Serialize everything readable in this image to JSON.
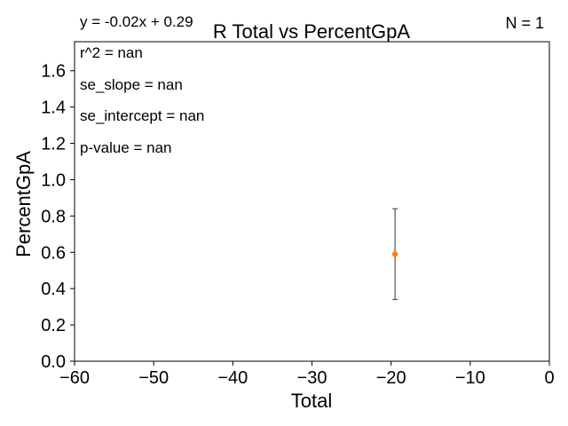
{
  "chart_data": {
    "type": "scatter",
    "title": "R Total vs PercentGpA",
    "xlabel": "Total",
    "ylabel": "PercentGpA",
    "xlim": [
      -60,
      0
    ],
    "ylim": [
      0,
      1.76
    ],
    "xticks": [
      -60,
      -50,
      -40,
      -30,
      -20,
      -10,
      0
    ],
    "xtick_labels": [
      "−60",
      "−50",
      "−40",
      "−30",
      "−20",
      "−10",
      "0"
    ],
    "yticks": [
      0.0,
      0.2,
      0.4,
      0.6,
      0.8,
      1.0,
      1.2,
      1.4,
      1.6
    ],
    "ytick_labels": [
      "0.0",
      "0.2",
      "0.4",
      "0.6",
      "0.8",
      "1.0",
      "1.2",
      "1.4",
      "1.6"
    ],
    "grid": false,
    "points": [
      {
        "x": -19.5,
        "y": 0.59,
        "yerr_low": 0.34,
        "yerr_high": 0.84
      }
    ],
    "point_color": "#ff7f0e",
    "errorbar_color": "#555555",
    "annotations": {
      "equation": "y = -0.02x + 0.29",
      "n_label": "N = 1",
      "r2": "r^2 = nan",
      "se_slope": "se_slope = nan",
      "se_intercept": "se_intercept = nan",
      "p_value": "p-value = nan"
    }
  }
}
